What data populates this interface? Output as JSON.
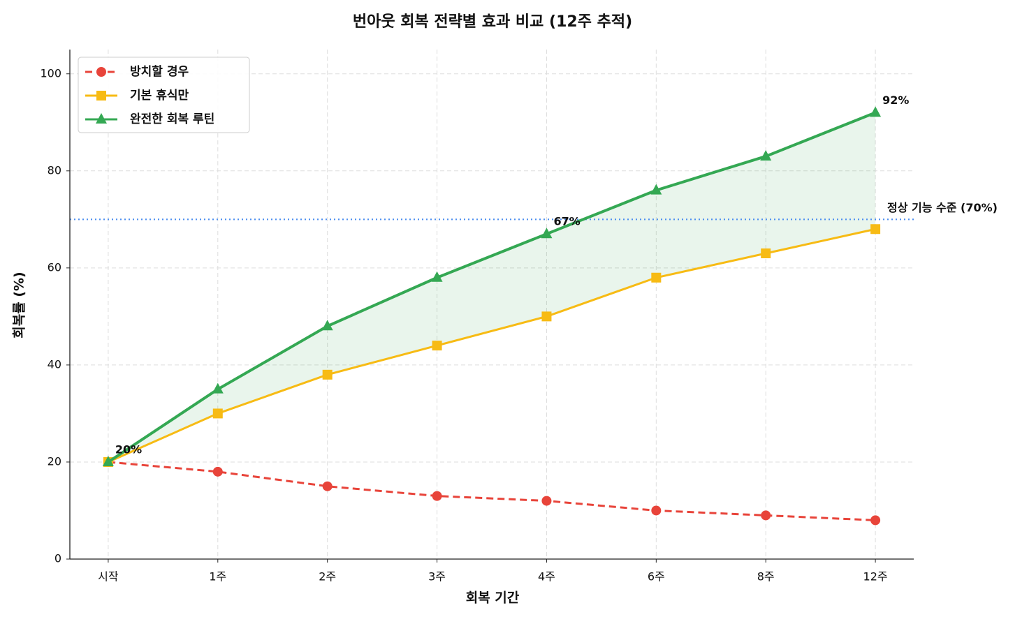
{
  "chart_data": {
    "type": "line",
    "title": "번아웃 회복 전략별 효과 비교 (12주 추적)",
    "x_label": "회복 기간",
    "y_label": "회복률 (%)",
    "categories": [
      "시작",
      "1주",
      "2주",
      "3주",
      "4주",
      "6주",
      "8주",
      "12주"
    ],
    "series": [
      {
        "name": "방치할 경우",
        "color": "#e8443a",
        "marker": "circle",
        "dashed": true,
        "values": [
          20,
          18,
          15,
          13,
          12,
          10,
          9,
          8
        ]
      },
      {
        "name": "기본 휴식만",
        "color": "#f7bb14",
        "marker": "square",
        "dashed": false,
        "values": [
          20,
          30,
          38,
          44,
          50,
          58,
          63,
          68
        ]
      },
      {
        "name": "완전한 회복 루틴",
        "color": "#34a853",
        "marker": "triangle",
        "dashed": false,
        "values": [
          20,
          35,
          48,
          58,
          67,
          76,
          83,
          92
        ],
        "value_labels": [
          "20%",
          null,
          null,
          null,
          "67%",
          null,
          null,
          "92%"
        ]
      }
    ],
    "fill_between": {
      "series": [
        1,
        2
      ],
      "color": "#34a853",
      "opacity": 0.11
    },
    "reference_line": {
      "value": 70,
      "label": "정상 기능 수준 (70%)",
      "color": "#4d8ff0",
      "label_color": "#1a73e8"
    },
    "ylim": [
      0,
      105
    ],
    "yticks": [
      0,
      20,
      40,
      60,
      80,
      100
    ],
    "grid": true,
    "legend": "upper left"
  }
}
